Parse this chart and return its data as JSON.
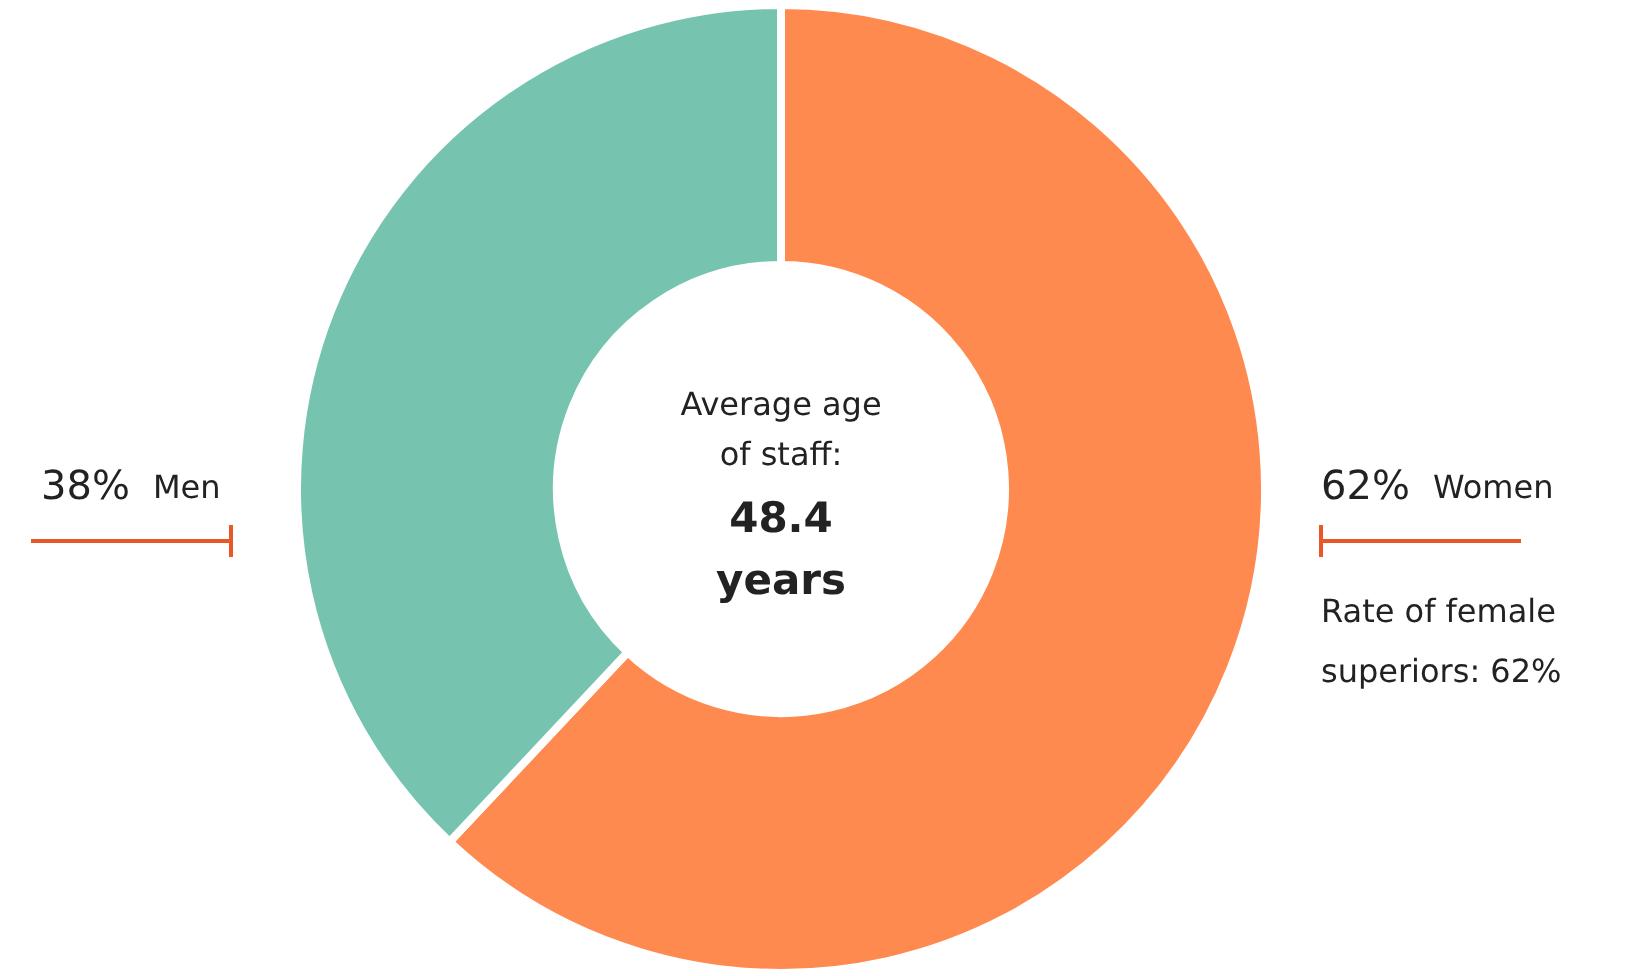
{
  "chart_data": {
    "type": "donut",
    "categories": [
      "Women",
      "Men"
    ],
    "values": [
      62,
      38
    ],
    "colors": [
      "#ff8a50",
      "#76c4b0"
    ],
    "value_labels": [
      "62%",
      "38%"
    ],
    "annotations": [
      "Average age of staff:",
      "48.4 years",
      "Rate of female superiors: 62%"
    ]
  }
}
